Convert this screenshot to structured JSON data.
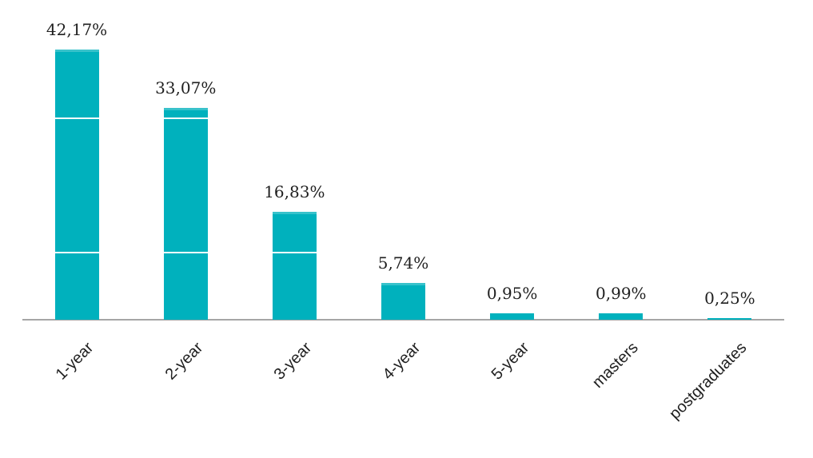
{
  "chart_data": {
    "type": "bar",
    "title": "",
    "xlabel": "",
    "ylabel": "",
    "categories": [
      "1-year",
      "2-year",
      "3-year",
      "4-year",
      "5-year",
      "masters",
      "postgraduates"
    ],
    "values": [
      42.17,
      33.07,
      16.83,
      5.74,
      0.95,
      0.99,
      0.25
    ],
    "value_labels": [
      "42,17%",
      "33,07%",
      "16,83%",
      "5,74%",
      "0,95%",
      "0,99%",
      "0,25%"
    ],
    "decimal_separator": ",",
    "unit": "%",
    "ylim": [
      0,
      45
    ],
    "legend_position": "none",
    "grid": "white overlay lines visible across bars",
    "white_gridline_values": [
      10.6,
      31.6
    ],
    "x_tick_rotation_deg": -45,
    "colors": {
      "bar": "#00b1bd",
      "axis_line": "#a6a6a6",
      "label_text": "#1f1f1f",
      "gridline_overlay": "#ffffff",
      "background": "#ffffff"
    }
  }
}
